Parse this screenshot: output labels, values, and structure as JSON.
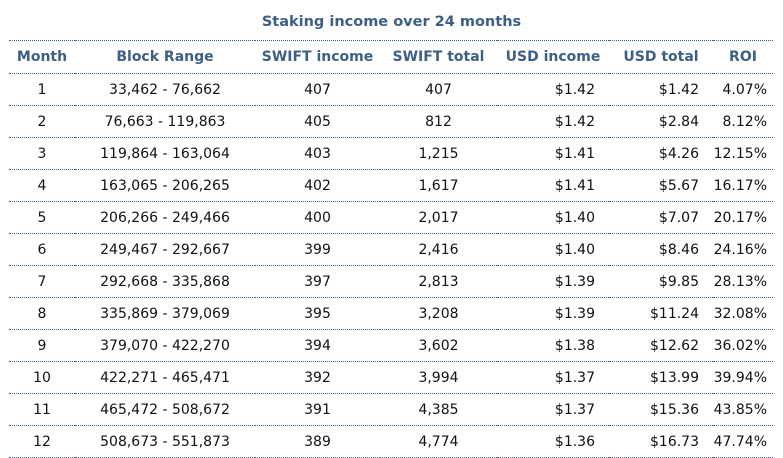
{
  "caption": "Staking income over 24 months",
  "columns": [
    "Month",
    "Block Range",
    "SWIFT income",
    "SWIFT total",
    "USD income",
    "USD total",
    "ROI"
  ],
  "rows": [
    [
      "1",
      "33,462 - 76,662",
      "407",
      "407",
      "$1.42",
      "$1.42",
      "4.07%"
    ],
    [
      "2",
      "76,663 - 119,863",
      "405",
      "812",
      "$1.42",
      "$2.84",
      "8.12%"
    ],
    [
      "3",
      "119,864 - 163,064",
      "403",
      "1,215",
      "$1.41",
      "$4.26",
      "12.15%"
    ],
    [
      "4",
      "163,065 - 206,265",
      "402",
      "1,617",
      "$1.41",
      "$5.67",
      "16.17%"
    ],
    [
      "5",
      "206,266 - 249,466",
      "400",
      "2,017",
      "$1.40",
      "$7.07",
      "20.17%"
    ],
    [
      "6",
      "249,467 - 292,667",
      "399",
      "2,416",
      "$1.40",
      "$8.46",
      "24.16%"
    ],
    [
      "7",
      "292,668 - 335,868",
      "397",
      "2,813",
      "$1.39",
      "$9.85",
      "28.13%"
    ],
    [
      "8",
      "335,869 - 379,069",
      "395",
      "3,208",
      "$1.39",
      "$11.24",
      "32.08%"
    ],
    [
      "9",
      "379,070 - 422,270",
      "394",
      "3,602",
      "$1.38",
      "$12.62",
      "36.02%"
    ],
    [
      "10",
      "422,271 - 465,471",
      "392",
      "3,994",
      "$1.37",
      "$13.99",
      "39.94%"
    ],
    [
      "11",
      "465,472 - 508,672",
      "391",
      "4,385",
      "$1.37",
      "$15.36",
      "43.85%"
    ],
    [
      "12",
      "508,673 - 551,873",
      "389",
      "4,774",
      "$1.36",
      "$16.73",
      "47.74%"
    ]
  ],
  "colors": {
    "header_text": "#3d5f86",
    "rule": "#3d5f86",
    "body_text": "#111111"
  }
}
